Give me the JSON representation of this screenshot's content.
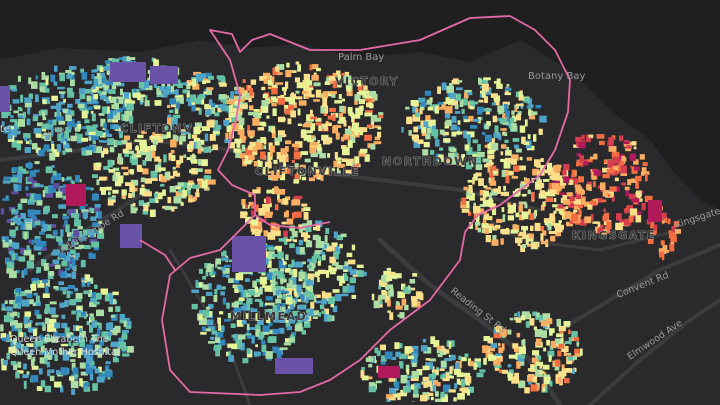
{
  "map": {
    "colors": {
      "background": "#1f1f20",
      "land": "#2b2b2d",
      "roads": "#3a3a3c",
      "boundary": "#e46aa7",
      "palette": [
        "#5e4fa2",
        "#3288bd",
        "#4fa3c7",
        "#66c2a5",
        "#abdda4",
        "#e6f598",
        "#fee08b",
        "#fdae61",
        "#f46d43",
        "#d53e4f",
        "#b0195a"
      ]
    },
    "labels": {
      "palm_bay": "Palm Bay",
      "botany_bay": "Botany Bay",
      "kingsgate_road": "Kingsgate",
      "cliftonville": "CLIFTONVILLE",
      "northdown": "NORTHDOWN",
      "kingsgate": "KINGSGATE",
      "millmead": "MILLMEAD",
      "reading_st_rd": "Reading St Rd",
      "convent_rd": "Convent Rd",
      "elmwood_ave": "Elmwood Ave",
      "addiscombe_rd": "Addiscombe Rd",
      "hospital_line1": "Queen Elizabeth The",
      "hospital_line2": "Queen Mother Hospital",
      "edge_te": "te",
      "edge_st_te": "St Te",
      "edge_clifton": "CLIFTONV",
      "edge_victory": "VICTORY"
    }
  }
}
